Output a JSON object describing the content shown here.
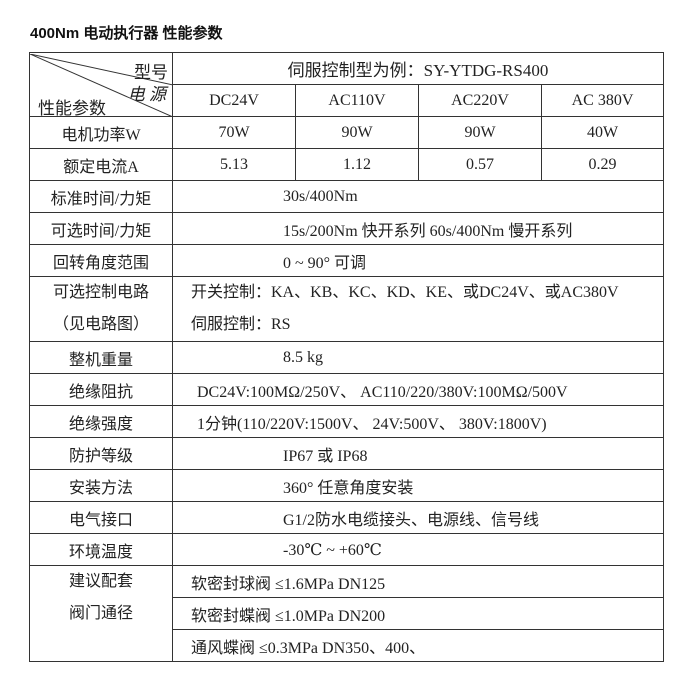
{
  "title": "400Nm  电动执行器  性能参数",
  "header": {
    "corner_model": "型号",
    "corner_power": "电 源",
    "corner_param": "性能参数",
    "model_example": "伺服控制型为例：SY-YTDG-RS400",
    "voltages": [
      "DC24V",
      "AC110V",
      "AC220V",
      "AC 380V"
    ]
  },
  "rows": [
    {
      "label": "电机功率W",
      "values": [
        "70W",
        "90W",
        "90W",
        "40W"
      ]
    },
    {
      "label": "额定电流A",
      "values": [
        "5.13",
        "1.12",
        "0.57",
        "0.29"
      ]
    }
  ],
  "specs": [
    {
      "label": "标准时间/力矩",
      "value": "30s/400Nm"
    },
    {
      "label": "可选时间/力矩",
      "value": "15s/200Nm 快开系列      60s/400Nm 慢开系列"
    },
    {
      "label": "回转角度范围",
      "value": "0 ~ 90° 可调"
    },
    {
      "label": "可选控制电路",
      "label2": "（见电路图）",
      "value": "开关控制：KA、KB、KC、KD、KE、或DC24V、或AC380V",
      "value2": "伺服控制：RS"
    },
    {
      "label": "整机重量",
      "value": "8.5 kg"
    },
    {
      "label": "绝缘阻抗",
      "value": "DC24V:100MΩ/250V、  AC110/220/380V:100MΩ/500V"
    },
    {
      "label": "绝缘强度",
      "value": "1分钟(110/220V:1500V、 24V:500V、  380V:1800V)"
    },
    {
      "label": "防护等级",
      "value": "IP67 或 IP68"
    },
    {
      "label": "安装方法",
      "value": "360° 任意角度安装"
    },
    {
      "label": "电气接口",
      "value": "G1/2防水电缆接头、电源线、信号线"
    },
    {
      "label": "环境温度",
      "value": "-30℃ ~ +60℃"
    }
  ],
  "valves": {
    "label": "建议配套",
    "label2": "阀门通径",
    "items": [
      "软密封球阀 ≤1.6MPa    DN125",
      "软密封蝶阀 ≤1.0MPa     DN200",
      "通风蝶阀 ≤0.3MPa        DN350、400、"
    ]
  }
}
